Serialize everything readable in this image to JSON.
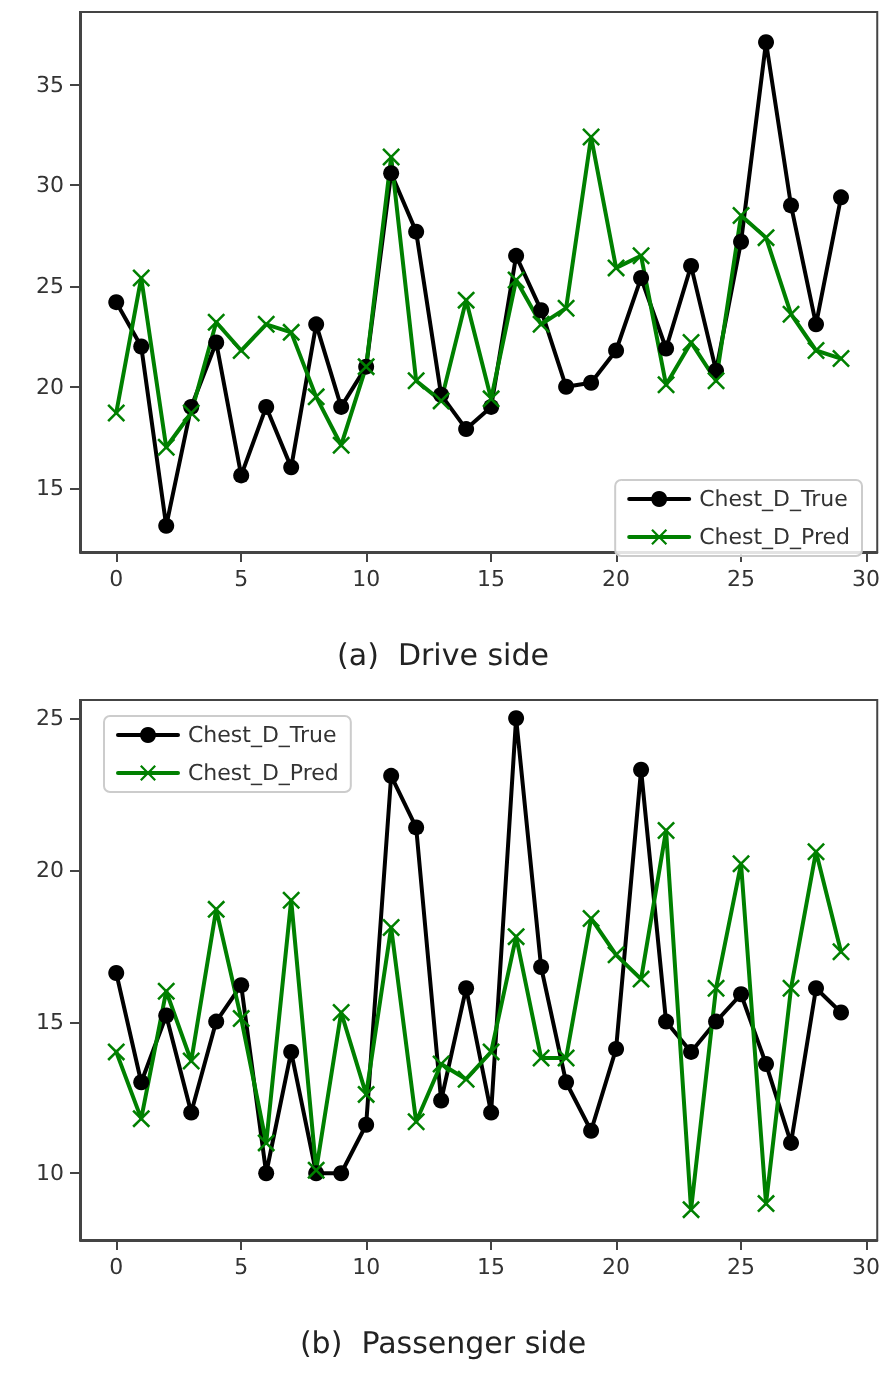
{
  "chart_data": [
    {
      "type": "line",
      "title": "(a)  Drive side",
      "x": [
        0,
        1,
        2,
        3,
        4,
        5,
        6,
        7,
        8,
        9,
        10,
        11,
        12,
        13,
        14,
        15,
        16,
        17,
        18,
        19,
        20,
        21,
        22,
        23,
        24,
        25,
        26,
        27,
        28,
        29
      ],
      "series": [
        {
          "name": "Chest_D_True",
          "color": "#000000",
          "marker": "circle",
          "values": [
            24.2,
            22.0,
            13.1,
            19.0,
            22.2,
            15.6,
            19.0,
            16.0,
            23.1,
            19.0,
            21.0,
            30.6,
            27.7,
            19.6,
            17.9,
            19.0,
            26.5,
            23.8,
            20.0,
            20.2,
            21.8,
            25.4,
            21.9,
            26.0,
            20.8,
            27.2,
            37.1,
            29.0,
            23.1,
            29.4
          ]
        },
        {
          "name": "Chest_D_Pred",
          "color": "#008000",
          "marker": "cross",
          "values": [
            18.7,
            25.4,
            17.0,
            18.7,
            23.2,
            21.8,
            23.1,
            22.7,
            19.5,
            17.1,
            21.0,
            31.4,
            20.3,
            19.3,
            24.3,
            19.4,
            25.3,
            23.1,
            23.9,
            32.4,
            25.9,
            26.5,
            20.1,
            22.2,
            20.3,
            28.5,
            27.4,
            23.6,
            21.8,
            21.4
          ]
        }
      ],
      "xlim": [
        -1.45,
        30.45
      ],
      "xticks": [
        0,
        5,
        10,
        15,
        20,
        25,
        30
      ],
      "ylim": [
        11.8,
        38.6
      ],
      "yticks": [
        15,
        20,
        25,
        30,
        35
      ],
      "legend": "bottom right",
      "grid": false,
      "line_style": "solid"
    },
    {
      "type": "line",
      "title": "(b)  Passenger side",
      "x": [
        0,
        1,
        2,
        3,
        4,
        5,
        6,
        7,
        8,
        9,
        10,
        11,
        12,
        13,
        14,
        15,
        16,
        17,
        18,
        19,
        20,
        21,
        22,
        23,
        24,
        25,
        26,
        27,
        28,
        29
      ],
      "series": [
        {
          "name": "Chest_D_True",
          "color": "#000000",
          "marker": "circle",
          "values": [
            16.6,
            13.0,
            15.2,
            12.0,
            15.0,
            16.2,
            10.0,
            14.0,
            10.0,
            10.0,
            11.6,
            23.1,
            21.4,
            12.4,
            16.1,
            12.0,
            25.0,
            16.8,
            13.0,
            11.4,
            14.1,
            23.3,
            15.0,
            14.0,
            15.0,
            15.9,
            13.6,
            11.0,
            16.1,
            15.3
          ]
        },
        {
          "name": "Chest_D_Pred",
          "color": "#008000",
          "marker": "cross",
          "values": [
            14.0,
            11.8,
            16.0,
            13.7,
            18.7,
            15.1,
            11.0,
            19.0,
            10.1,
            15.3,
            12.6,
            18.1,
            11.7,
            13.6,
            13.1,
            14.0,
            17.8,
            13.8,
            13.8,
            18.4,
            17.2,
            16.4,
            21.3,
            8.8,
            16.1,
            20.2,
            9.0,
            16.1,
            20.6,
            17.3
          ]
        }
      ],
      "xlim": [
        -1.45,
        30.45
      ],
      "xticks": [
        0,
        5,
        10,
        15,
        20,
        25,
        30
      ],
      "ylim": [
        7.8,
        25.6
      ],
      "yticks": [
        10,
        15,
        20,
        25
      ],
      "legend": "top left",
      "grid": false,
      "line_style": "solid"
    }
  ]
}
